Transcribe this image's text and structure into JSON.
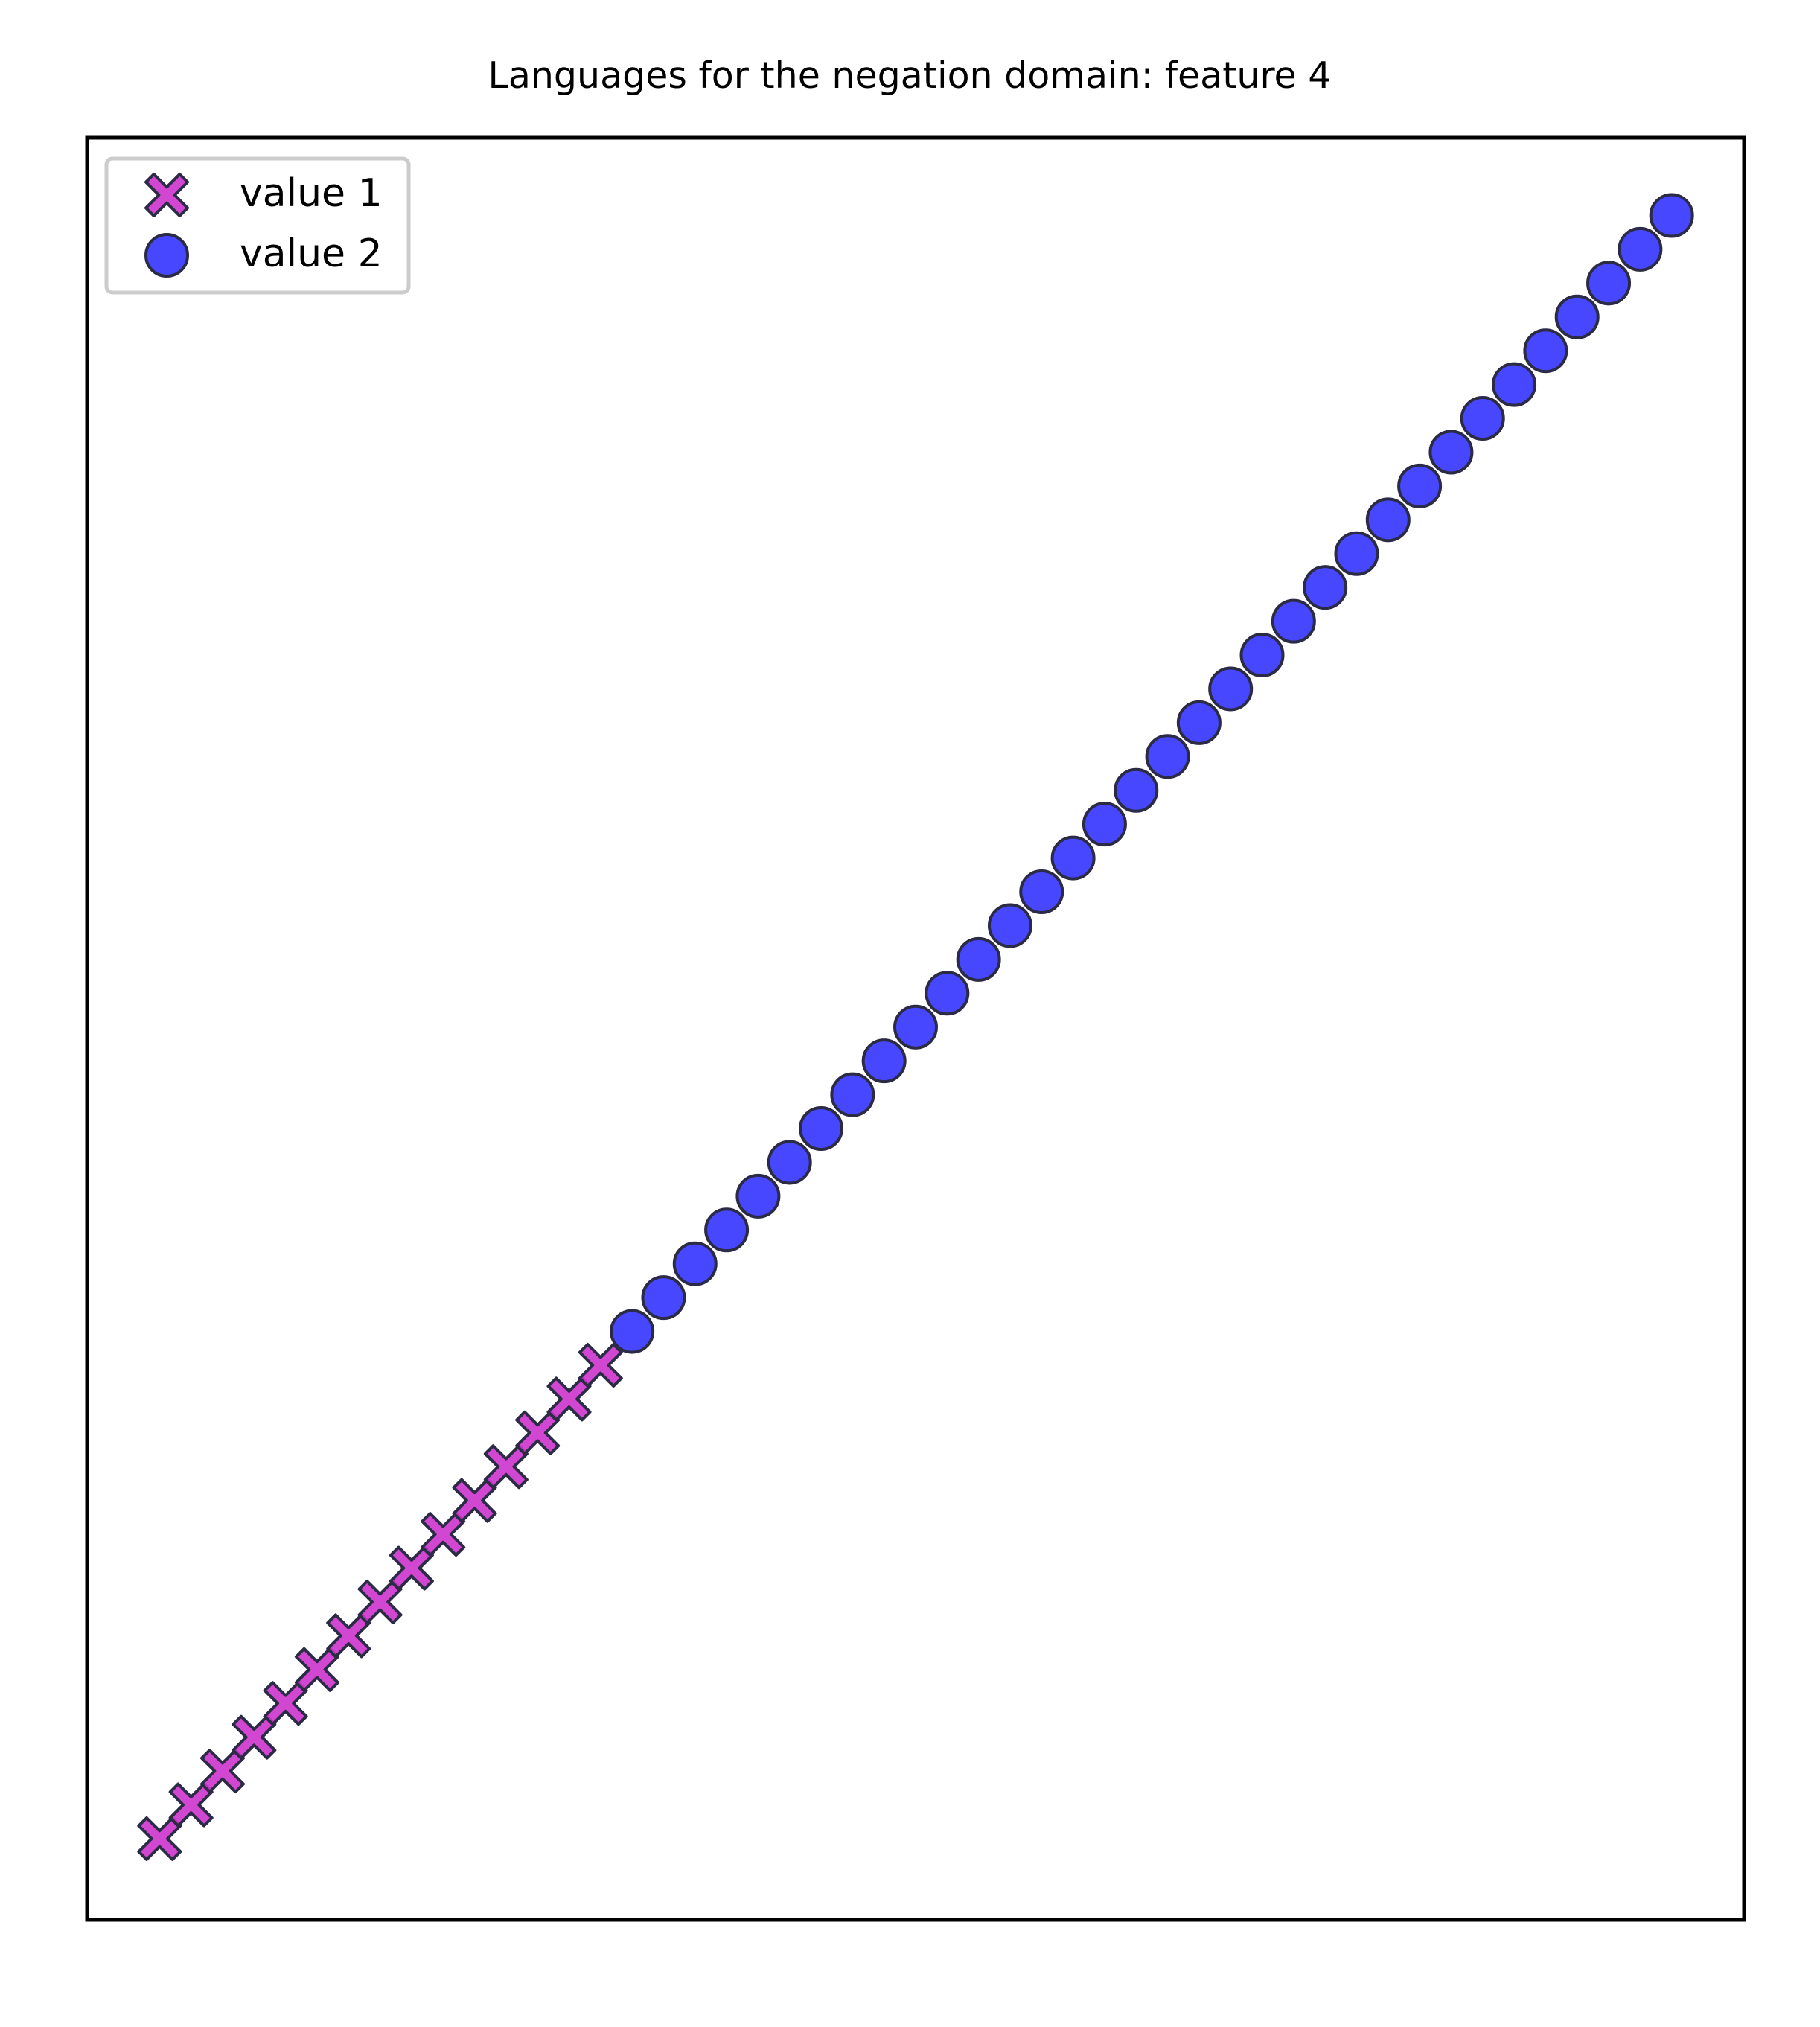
{
  "chart_data": {
    "type": "scatter",
    "title": "Languages for the negation domain: feature 4",
    "xlabel": "",
    "ylabel": "",
    "ticks_visible": false,
    "grid": false,
    "legend_position": "upper-left",
    "xlim": [
      -2.3,
      50.3
    ],
    "ylim": [
      -2.4,
      50.3
    ],
    "series": [
      {
        "name": "value 1",
        "marker": "x-filled",
        "color": "#cc33cc",
        "points": [
          [
            0,
            0
          ],
          [
            1,
            1
          ],
          [
            2,
            2
          ],
          [
            3,
            3
          ],
          [
            4,
            4
          ],
          [
            5,
            5
          ],
          [
            6,
            6
          ],
          [
            7,
            7
          ],
          [
            8,
            8
          ],
          [
            9,
            9
          ],
          [
            10,
            10
          ],
          [
            11,
            11
          ],
          [
            12,
            12
          ],
          [
            13,
            13
          ],
          [
            14,
            14
          ]
        ]
      },
      {
        "name": "value 2",
        "marker": "circle",
        "color": "#3333ff",
        "points": [
          [
            15,
            15
          ],
          [
            16,
            16
          ],
          [
            17,
            17
          ],
          [
            18,
            18
          ],
          [
            19,
            19
          ],
          [
            20,
            20
          ],
          [
            21,
            21
          ],
          [
            22,
            22
          ],
          [
            23,
            23
          ],
          [
            24,
            24
          ],
          [
            25,
            25
          ],
          [
            26,
            26
          ],
          [
            27,
            27
          ],
          [
            28,
            28
          ],
          [
            29,
            29
          ],
          [
            30,
            30
          ],
          [
            31,
            31
          ],
          [
            32,
            32
          ],
          [
            33,
            33
          ],
          [
            34,
            34
          ],
          [
            35,
            35
          ],
          [
            36,
            36
          ],
          [
            37,
            37
          ],
          [
            38,
            38
          ],
          [
            39,
            39
          ],
          [
            40,
            40
          ],
          [
            41,
            41
          ],
          [
            42,
            42
          ],
          [
            43,
            43
          ],
          [
            44,
            44
          ],
          [
            45,
            45
          ],
          [
            46,
            46
          ],
          [
            47,
            47
          ],
          [
            48,
            48
          ]
        ]
      }
    ]
  }
}
